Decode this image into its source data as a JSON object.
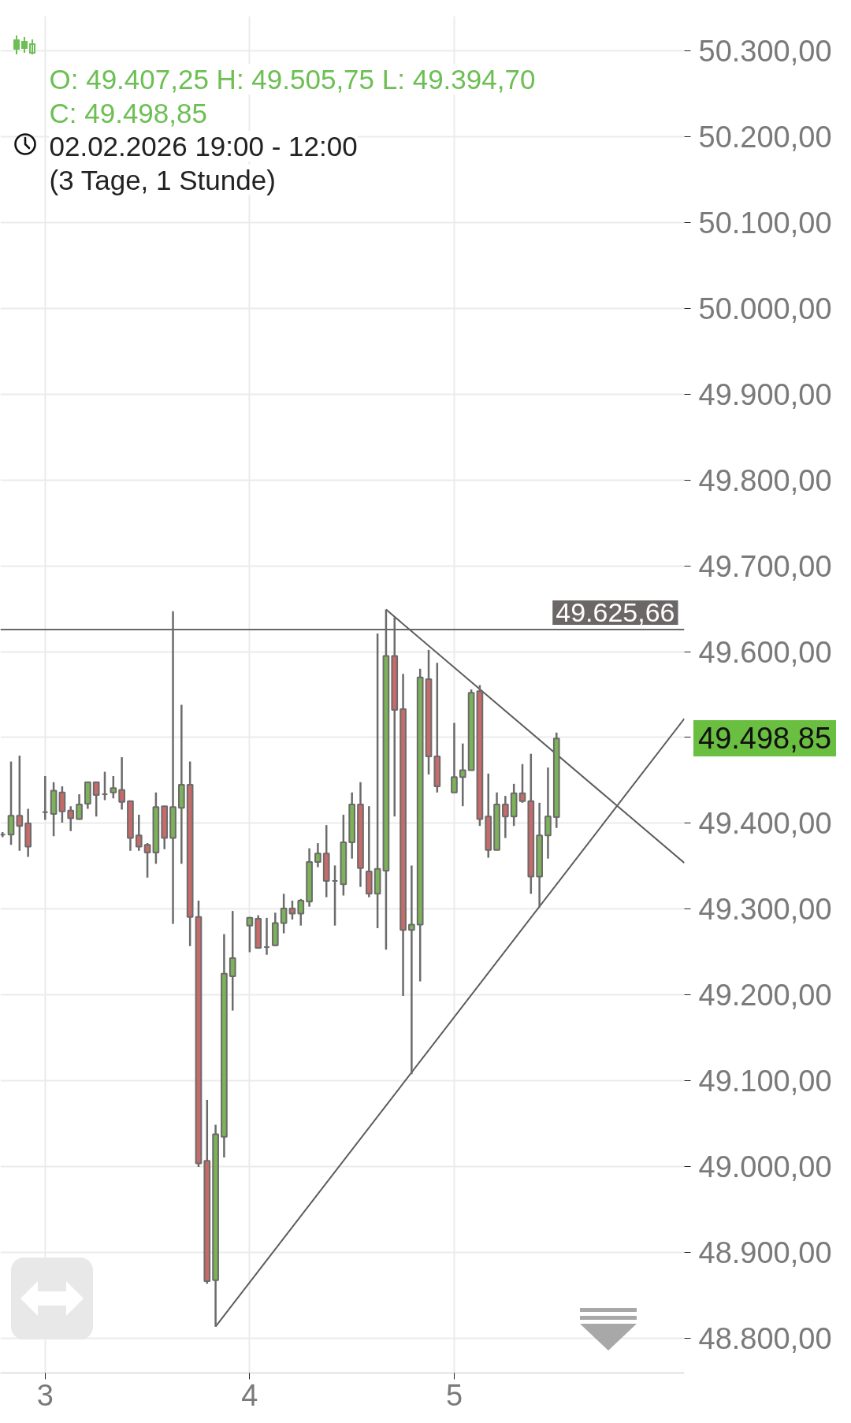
{
  "chart_data": {
    "type": "candlestick",
    "title": "O: 49.407,25 H: 49.505,75 L: 49.394,70",
    "subtitle": "C: 49.498,85",
    "annotations": [
      "02.02.2026 19:00 - 12:00",
      "(3 Tage, 1 Stunde)",
      "49.498,85"
    ],
    "x": [
      "2026-02-02T19:00",
      "2026-02-02T20:00",
      "2026-02-02T21:00",
      "2026-02-02T22:00",
      "2026-02-03T00:00",
      "2026-02-03T01:00",
      "2026-02-03T02:00",
      "2026-02-03T03:00",
      "2026-02-03T04:00",
      "2026-02-03T05:00",
      "2026-02-03T06:00",
      "2026-02-03T07:00",
      "2026-02-03T08:00",
      "2026-02-03T09:00",
      "2026-02-03T10:00",
      "2026-02-03T11:00",
      "2026-02-03T12:00",
      "2026-02-03T13:00",
      "2026-02-03T14:00",
      "2026-02-03T15:00",
      "2026-02-03T16:00",
      "2026-02-03T17:00",
      "2026-02-03T18:00",
      "2026-02-03T19:00",
      "2026-02-03T20:00",
      "2026-02-03T21:00",
      "2026-02-03T22:00",
      "2026-02-04T00:00",
      "2026-02-04T01:00",
      "2026-02-04T02:00",
      "2026-02-04T03:00",
      "2026-02-04T04:00",
      "2026-02-04T05:00",
      "2026-02-04T06:00",
      "2026-02-04T07:00",
      "2026-02-04T08:00",
      "2026-02-04T09:00",
      "2026-02-04T10:00",
      "2026-02-04T11:00",
      "2026-02-04T12:00",
      "2026-02-04T13:00",
      "2026-02-04T14:00",
      "2026-02-04T15:00",
      "2026-02-04T16:00",
      "2026-02-04T17:00",
      "2026-02-04T18:00",
      "2026-02-04T19:00",
      "2026-02-04T20:00",
      "2026-02-04T21:00",
      "2026-02-04T22:00",
      "2026-02-05T00:00",
      "2026-02-05T01:00",
      "2026-02-05T02:00",
      "2026-02-05T03:00",
      "2026-02-05T04:00",
      "2026-02-05T05:00",
      "2026-02-05T06:00",
      "2026-02-05T07:00",
      "2026-02-05T08:00",
      "2026-02-05T09:00",
      "2026-02-05T10:00",
      "2026-02-05T11:00",
      "2026-02-05T12:00"
    ],
    "ohlc": [
      [
        49387,
        49390,
        49384,
        49387
      ],
      [
        49387,
        49472,
        49375,
        49409
      ],
      [
        49409,
        49479,
        49368,
        49397
      ],
      [
        49400,
        49417,
        49361,
        49373
      ],
      [
        49413,
        49455,
        49404,
        49413
      ],
      [
        49411,
        49448,
        49385,
        49438
      ],
      [
        49436,
        49443,
        49401,
        49414
      ],
      [
        49415,
        49420,
        49391,
        49406
      ],
      [
        49405,
        49434,
        49404,
        49422
      ],
      [
        49423,
        49448,
        49417,
        49448
      ],
      [
        49448,
        49448,
        49408,
        49433
      ],
      [
        49434,
        49460,
        49427,
        49434
      ],
      [
        49436,
        49455,
        49429,
        49441
      ],
      [
        49439,
        49477,
        49416,
        49425
      ],
      [
        49426,
        49426,
        49368,
        49383
      ],
      [
        49386,
        49410,
        49368,
        49373
      ],
      [
        49375,
        49377,
        49337,
        49366
      ],
      [
        49366,
        49436,
        49353,
        49419
      ],
      [
        49420,
        49420,
        49370,
        49383
      ],
      [
        49383,
        49647,
        49283,
        49419
      ],
      [
        49418,
        49538,
        49353,
        49445
      ],
      [
        49445,
        49472,
        49257,
        49291
      ],
      [
        49291,
        49310,
        49000,
        49004
      ],
      [
        49007,
        49078,
        48864,
        48867
      ],
      [
        48868,
        49049,
        48814,
        49038
      ],
      [
        49035,
        49271,
        49011,
        49225
      ],
      [
        49222,
        49298,
        49182,
        49243
      ],
      [
        49281,
        49291,
        49250,
        49290
      ],
      [
        49289,
        49293,
        49254,
        49255
      ],
      [
        49256,
        49290,
        49247,
        49256
      ],
      [
        49258,
        49296,
        49257,
        49284
      ],
      [
        49284,
        49318,
        49272,
        49301
      ],
      [
        49301,
        49310,
        49288,
        49295
      ],
      [
        49295,
        49312,
        49281,
        49310
      ],
      [
        49309,
        49371,
        49303,
        49355
      ],
      [
        49355,
        49377,
        49349,
        49365
      ],
      [
        49365,
        49398,
        49314,
        49333
      ],
      [
        49333,
        49351,
        49281,
        49333
      ],
      [
        49329,
        49410,
        49316,
        49378
      ],
      [
        49378,
        49436,
        49359,
        49422
      ],
      [
        49422,
        49448,
        49326,
        49348
      ],
      [
        49344,
        49420,
        49314,
        49318
      ],
      [
        49318,
        49621,
        49278,
        49347
      ],
      [
        49345,
        49649,
        49253,
        49595
      ],
      [
        49595,
        49640,
        49408,
        49532
      ],
      [
        49533,
        49574,
        49199,
        49276
      ],
      [
        49276,
        49351,
        49108,
        49282
      ],
      [
        49282,
        49580,
        49216,
        49570
      ],
      [
        49568,
        49602,
        49457,
        49478
      ],
      [
        49478,
        49587,
        49436,
        49443
      ],
      [
        49436,
        49517,
        49436,
        49454
      ],
      [
        49454,
        49493,
        49420,
        49462
      ],
      [
        49462,
        49556,
        49462,
        49552
      ],
      [
        49554,
        49561,
        49397,
        49405
      ],
      [
        49408,
        49458,
        49360,
        49369
      ],
      [
        49369,
        49436,
        49369,
        49422
      ],
      [
        49422,
        49432,
        49383,
        49408
      ],
      [
        49408,
        49446,
        49397,
        49435
      ],
      [
        49435,
        49469,
        49424,
        49426
      ],
      [
        49426,
        49481,
        49318,
        49338
      ],
      [
        49338,
        49424,
        49302,
        49386
      ],
      [
        49386,
        49465,
        49359,
        49408
      ],
      [
        49407.25,
        49505.75,
        49394.7,
        49498.85
      ]
    ],
    "colors": [
      "#6b6b6b",
      "#7cb258",
      "#c76a6a",
      "#c76a6a",
      "#6b6b6b",
      "#7cb258",
      "#c76a6a",
      "#c76a6a",
      "#7cb258",
      "#7cb258",
      "#c76a6a",
      "#6b6b6b",
      "#7cb258",
      "#c76a6a",
      "#c76a6a",
      "#c76a6a",
      "#c76a6a",
      "#7cb258",
      "#c76a6a",
      "#7cb258",
      "#7cb258",
      "#c76a6a",
      "#c76a6a",
      "#c76a6a",
      "#7cb258",
      "#7cb258",
      "#7cb258",
      "#7cb258",
      "#c76a6a",
      "#6b6b6b",
      "#7cb258",
      "#7cb258",
      "#c76a6a",
      "#7cb258",
      "#7cb258",
      "#7cb258",
      "#c76a6a",
      "#6b6b6b",
      "#7cb258",
      "#7cb258",
      "#c76a6a",
      "#c76a6a",
      "#7cb258",
      "#7cb258",
      "#c76a6a",
      "#c76a6a",
      "#7cb258",
      "#7cb258",
      "#c76a6a",
      "#c76a6a",
      "#7cb258",
      "#7cb258",
      "#7cb258",
      "#c76a6a",
      "#c76a6a",
      "#7cb258",
      "#c76a6a",
      "#7cb258",
      "#c76a6a",
      "#c76a6a",
      "#7cb258",
      "#7cb258",
      "#7cb258"
    ],
    "series": [
      {
        "type": "line",
        "x": [
          "2026-02-03T20:00",
          "2026-02-06T03:00"
        ],
        "values": [
          48814,
          49522
        ],
        "color": "#5c5c5c"
      },
      {
        "type": "line",
        "x": [
          "2026-02-04T16:00",
          "2026-02-06T03:00"
        ],
        "values": [
          49649,
          49354
        ],
        "color": "#5c5c5c"
      }
    ],
    "xlim": [
      "2026-02-02T18:45",
      "2026-02-06T03:00"
    ],
    "xticks": [
      {
        "value": "2026-02-03",
        "label": "3"
      },
      {
        "value": "2026-02-04",
        "label": "4"
      },
      {
        "value": "2026-02-05",
        "label": "5"
      }
    ],
    "ylim": [
      48760,
      50340
    ],
    "yticks": [
      {
        "value": 48800,
        "label": "48.800,00"
      },
      {
        "value": 48900,
        "label": "48.900,00"
      },
      {
        "value": 49000,
        "label": "49.000,00"
      },
      {
        "value": 49100,
        "label": "49.100,00"
      },
      {
        "value": 49200,
        "label": "49.200,00"
      },
      {
        "value": 49300,
        "label": "49.300,00"
      },
      {
        "value": 49400,
        "label": "49.400,00"
      },
      {
        "value": 49500,
        "label": null
      },
      {
        "value": 49600,
        "label": "49.600,00"
      },
      {
        "value": 49700,
        "label": "49.700,00"
      },
      {
        "value": 49800,
        "label": "49.800,00"
      },
      {
        "value": 49900,
        "label": "49.900,00"
      },
      {
        "value": 50000,
        "label": "50.000,00"
      },
      {
        "value": 50100,
        "label": "50.100,00"
      },
      {
        "value": 50200,
        "label": "50.200,00"
      },
      {
        "value": 50300,
        "label": "50.300,00"
      }
    ],
    "ref_lines": [
      {
        "axis": "y",
        "value": 49625.66,
        "label": "49.625,66",
        "color": "#6b6767"
      }
    ],
    "grid": true
  }
}
